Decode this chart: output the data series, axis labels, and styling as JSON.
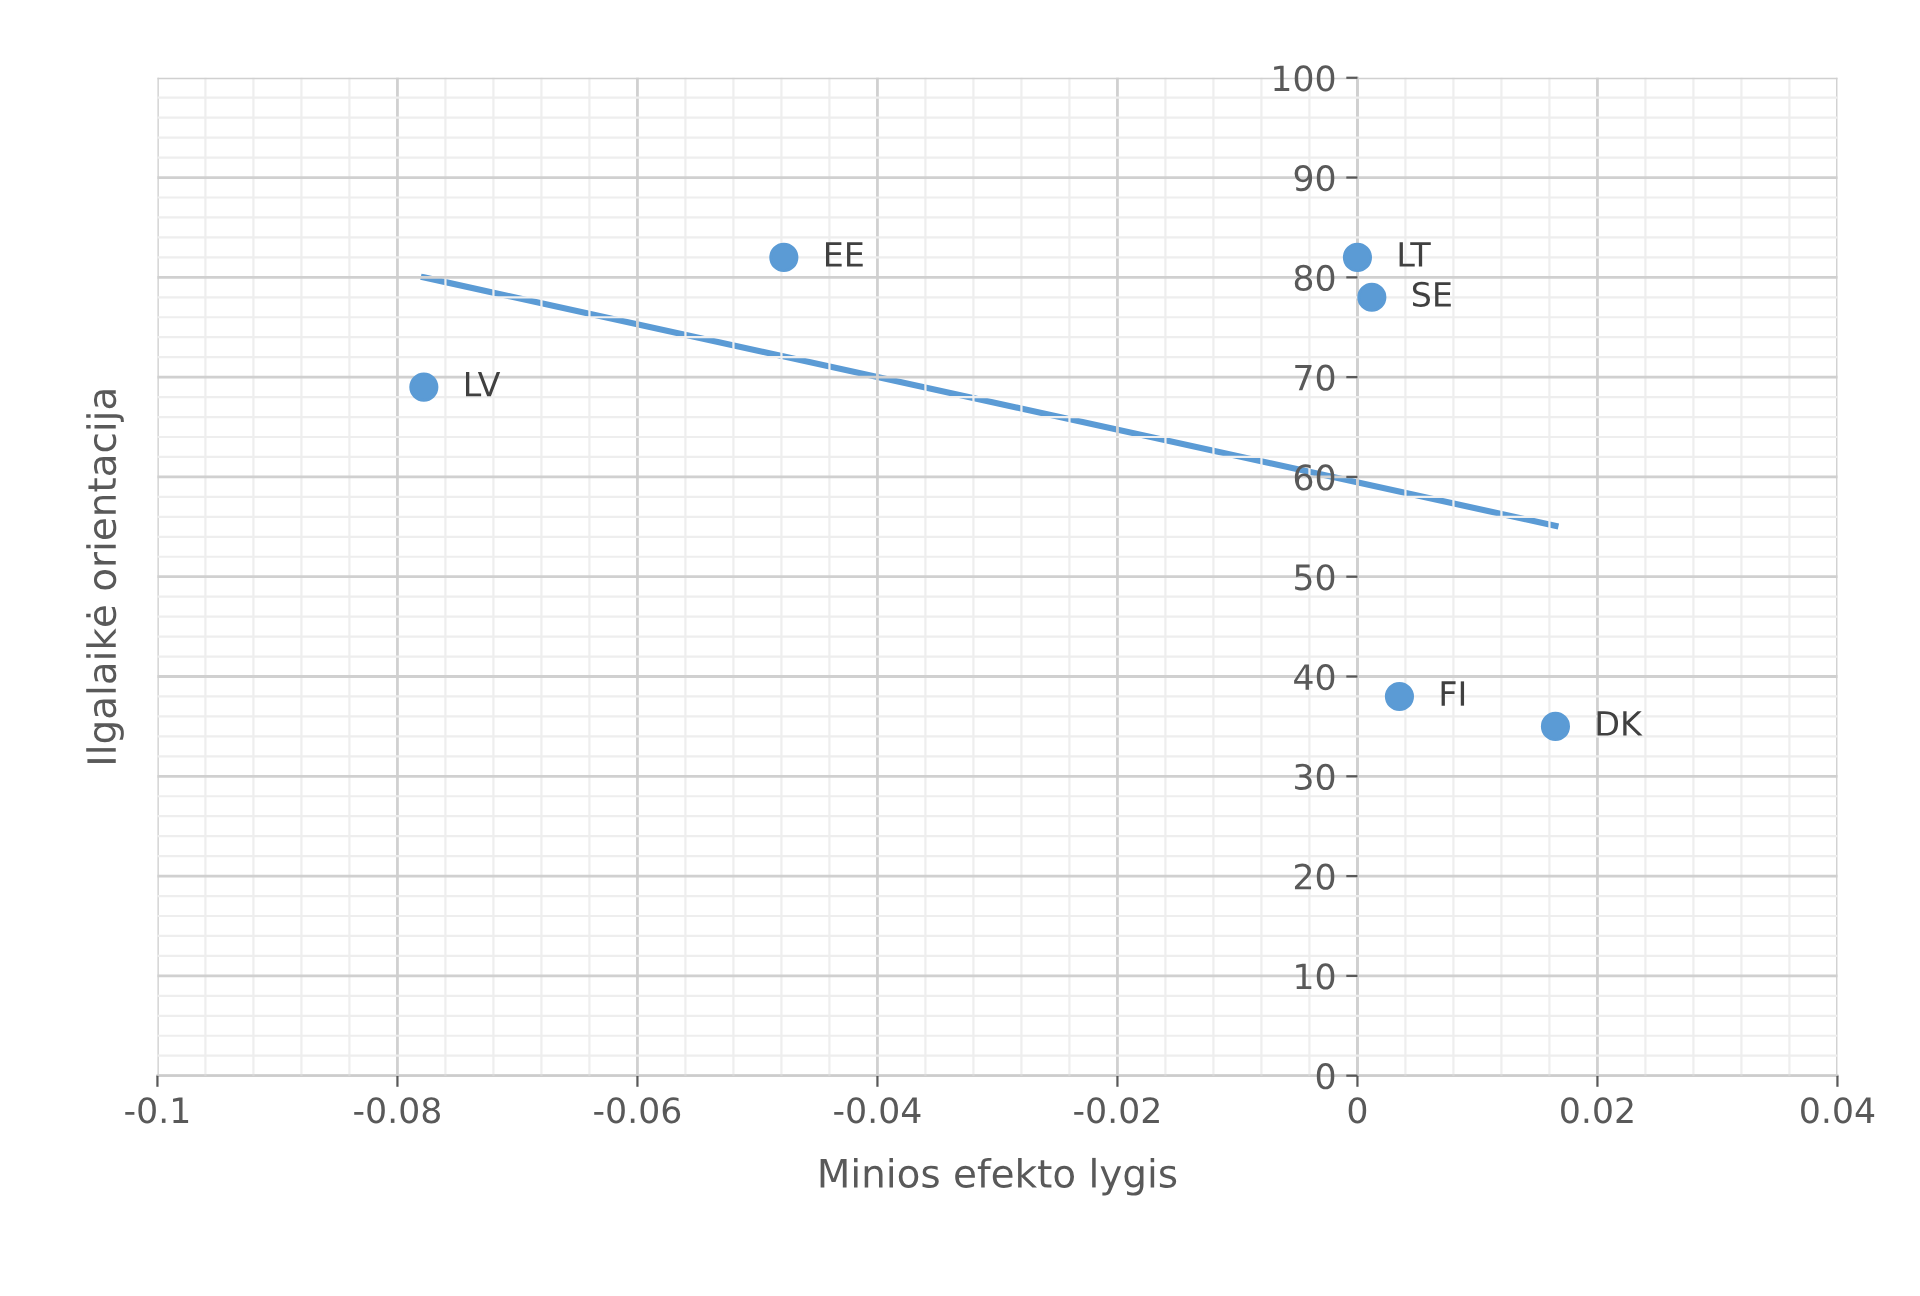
{
  "chart_data": {
    "type": "scatter",
    "xlabel": "Minios efekto lygis",
    "ylabel": "Ilgalaikė orientacija",
    "series": [
      {
        "color": "#5b9bd5",
        "x": [
          -0.0778,
          -0.0478,
          0.0,
          0.0012,
          0.0035,
          0.0165
        ],
        "values": [
          69,
          82,
          82,
          78,
          38,
          35
        ],
        "marker": "circle"
      },
      {
        "type": "line",
        "color": "#5b9bd5",
        "x": [
          -0.0778,
          0.0165
        ],
        "values": [
          80,
          55.1
        ],
        "line_style": "solid",
        "marker": "none"
      }
    ],
    "annotations": [
      {
        "text": "LV",
        "x": -0.0778,
        "y": 69
      },
      {
        "text": "EE",
        "x": -0.0478,
        "y": 82
      },
      {
        "text": "LT",
        "x": 0.0,
        "y": 82
      },
      {
        "text": "SE",
        "x": 0.0012,
        "y": 78
      },
      {
        "text": "FI",
        "x": 0.0035,
        "y": 38
      },
      {
        "text": "DK",
        "x": 0.0165,
        "y": 35
      }
    ],
    "xlim": [
      -0.1,
      0.04
    ],
    "xticks": [
      -0.1,
      -0.08,
      -0.06,
      -0.04,
      -0.02,
      0,
      0.02,
      0.04
    ],
    "ylim": [
      0,
      100
    ],
    "yticks": [
      0,
      10,
      20,
      30,
      40,
      50,
      60,
      70,
      80,
      90,
      100
    ],
    "grid": true
  }
}
